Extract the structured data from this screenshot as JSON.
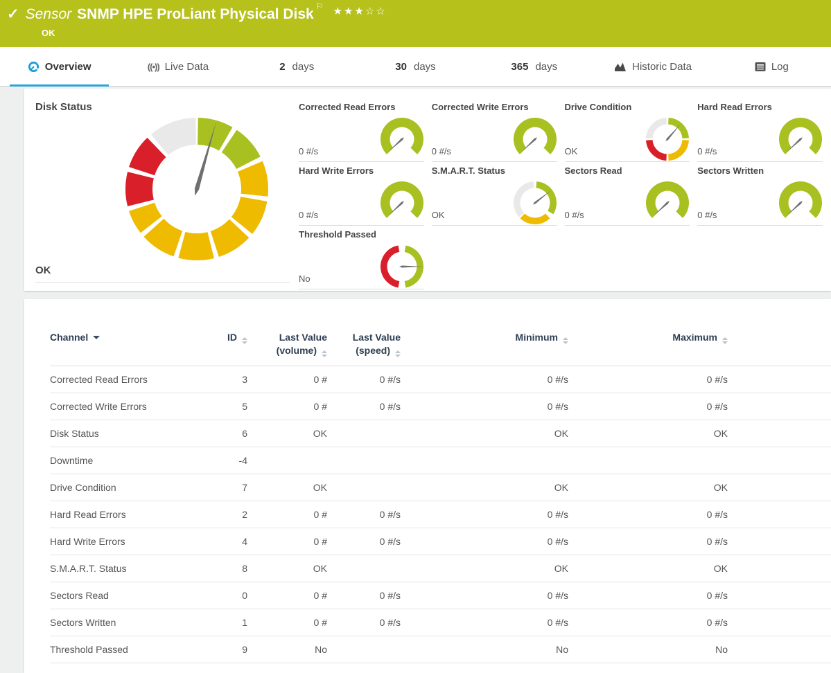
{
  "colors": {
    "green": "#a9c021",
    "yellow": "#eebb00",
    "red": "#d9202a",
    "gray": "#e9e9e9",
    "needle": "#6f6f6f",
    "header_green": "#b6c11c",
    "accent_blue": "#2aa3dc"
  },
  "header": {
    "kind_label": "Sensor",
    "title": "SNMP HPE ProLiant Physical Disk",
    "status": "OK",
    "check_icon": "check-mark",
    "flag_icon": "priority-flag",
    "stars_filled": 3,
    "stars_total": 5
  },
  "tabs": [
    {
      "id": "overview",
      "icon": "gauge",
      "prefix": "",
      "label": "Overview",
      "active": true
    },
    {
      "id": "live-data",
      "icon": "live",
      "prefix": "",
      "label": "Live Data",
      "active": false
    },
    {
      "id": "2-days",
      "icon": "",
      "prefix": "2",
      "label": "days",
      "active": false
    },
    {
      "id": "30-days",
      "icon": "",
      "prefix": "30",
      "label": "days",
      "active": false
    },
    {
      "id": "365-days",
      "icon": "",
      "prefix": "365",
      "label": "days",
      "active": false
    },
    {
      "id": "historic-data",
      "icon": "chart",
      "prefix": "",
      "label": "Historic Data",
      "active": false
    },
    {
      "id": "log",
      "icon": "log",
      "prefix": "",
      "label": "Log",
      "active": false
    }
  ],
  "overview_card": {
    "main_gauge": {
      "label": "Disk Status",
      "value": "OK",
      "needle_angle": 16,
      "segments": [
        [
          1,
          30,
          "green"
        ],
        [
          34,
          63,
          "green"
        ],
        [
          67,
          96,
          "yellow"
        ],
        [
          100,
          129,
          "yellow"
        ],
        [
          133,
          162,
          "yellow"
        ],
        [
          166,
          195,
          "yellow"
        ],
        [
          199,
          228,
          "yellow"
        ],
        [
          232,
          252,
          "yellow"
        ],
        [
          256,
          284,
          "red"
        ],
        [
          288,
          316,
          "red"
        ],
        [
          320,
          359,
          "gray"
        ]
      ]
    },
    "gauge_types": {
      "arc": {
        "ro": 31,
        "ri": 17.5,
        "needle_len": 27,
        "needle_w": 1.5,
        "segments": [
          [
            225,
            495,
            "green"
          ]
        ]
      },
      "quarters": {
        "ro": 31,
        "ri": 21.5,
        "needle_len": 29,
        "needle_w": 1.5,
        "segments": [
          [
            3,
            87,
            "green"
          ],
          [
            93,
            177,
            "yellow"
          ],
          [
            183,
            267,
            "red"
          ],
          [
            273,
            357,
            "gray"
          ]
        ]
      },
      "smart": {
        "ro": 31,
        "ri": 21.5,
        "needle_len": 29,
        "needle_w": 1.5,
        "segments": [
          [
            4,
            122,
            "green"
          ],
          [
            136,
            224,
            "yellow"
          ],
          [
            228,
            356,
            "gray"
          ]
        ]
      },
      "threshold": {
        "ro": 31,
        "ri": 21.5,
        "needle_len": 31,
        "needle_w": 1.5,
        "segments": [
          [
            10,
            170,
            "green"
          ],
          [
            190,
            350,
            "red"
          ]
        ]
      }
    },
    "gauges": [
      {
        "label": "Corrected Read Errors",
        "value": "0 #/s",
        "type": "arc",
        "needle_angle": 227
      },
      {
        "label": "Corrected Write Errors",
        "value": "0 #/s",
        "type": "arc",
        "needle_angle": 227
      },
      {
        "label": "Drive Condition",
        "value": "OK",
        "type": "quarters",
        "needle_angle": 41
      },
      {
        "label": "Hard Read Errors",
        "value": "0 #/s",
        "type": "arc",
        "needle_angle": 227
      },
      {
        "label": "Hard Write Errors",
        "value": "0 #/s",
        "type": "arc",
        "needle_angle": 227
      },
      {
        "label": "S.M.A.R.T. Status",
        "value": "OK",
        "type": "smart",
        "needle_angle": 52
      },
      {
        "label": "Sectors Read",
        "value": "0 #/s",
        "type": "arc",
        "needle_angle": 227
      },
      {
        "label": "Sectors Written",
        "value": "0 #/s",
        "type": "arc",
        "needle_angle": 227
      },
      {
        "label": "Threshold Passed",
        "value": "No",
        "type": "threshold",
        "needle_angle": 90
      }
    ]
  },
  "table": {
    "columns": [
      {
        "lines": [
          "Channel"
        ],
        "sort": "active",
        "align": "left"
      },
      {
        "lines": [
          "ID"
        ],
        "sort": "none",
        "align": "right"
      },
      {
        "lines": [
          "Last Value",
          "(volume)"
        ],
        "sort": "none",
        "align": "right"
      },
      {
        "lines": [
          "Last Value",
          "(speed)"
        ],
        "sort": "none",
        "align": "right"
      },
      {
        "lines": [
          "Minimum"
        ],
        "sort": "none",
        "align": "right"
      },
      {
        "lines": [
          "Maximum"
        ],
        "sort": "none",
        "align": "right"
      }
    ],
    "rows": [
      [
        "Corrected Read Errors",
        "3",
        "0 #",
        "0 #/s",
        "0 #/s",
        "0 #/s"
      ],
      [
        "Corrected Write Errors",
        "5",
        "0 #",
        "0 #/s",
        "0 #/s",
        "0 #/s"
      ],
      [
        "Disk Status",
        "6",
        "OK",
        "",
        "OK",
        "OK"
      ],
      [
        "Downtime",
        "-4",
        "",
        "",
        "",
        ""
      ],
      [
        "Drive Condition",
        "7",
        "OK",
        "",
        "OK",
        "OK"
      ],
      [
        "Hard Read Errors",
        "2",
        "0 #",
        "0 #/s",
        "0 #/s",
        "0 #/s"
      ],
      [
        "Hard Write Errors",
        "4",
        "0 #",
        "0 #/s",
        "0 #/s",
        "0 #/s"
      ],
      [
        "S.M.A.R.T. Status",
        "8",
        "OK",
        "",
        "OK",
        "OK"
      ],
      [
        "Sectors Read",
        "0",
        "0 #",
        "0 #/s",
        "0 #/s",
        "0 #/s"
      ],
      [
        "Sectors Written",
        "1",
        "0 #",
        "0 #/s",
        "0 #/s",
        "0 #/s"
      ],
      [
        "Threshold Passed",
        "9",
        "No",
        "",
        "No",
        "No"
      ]
    ]
  }
}
